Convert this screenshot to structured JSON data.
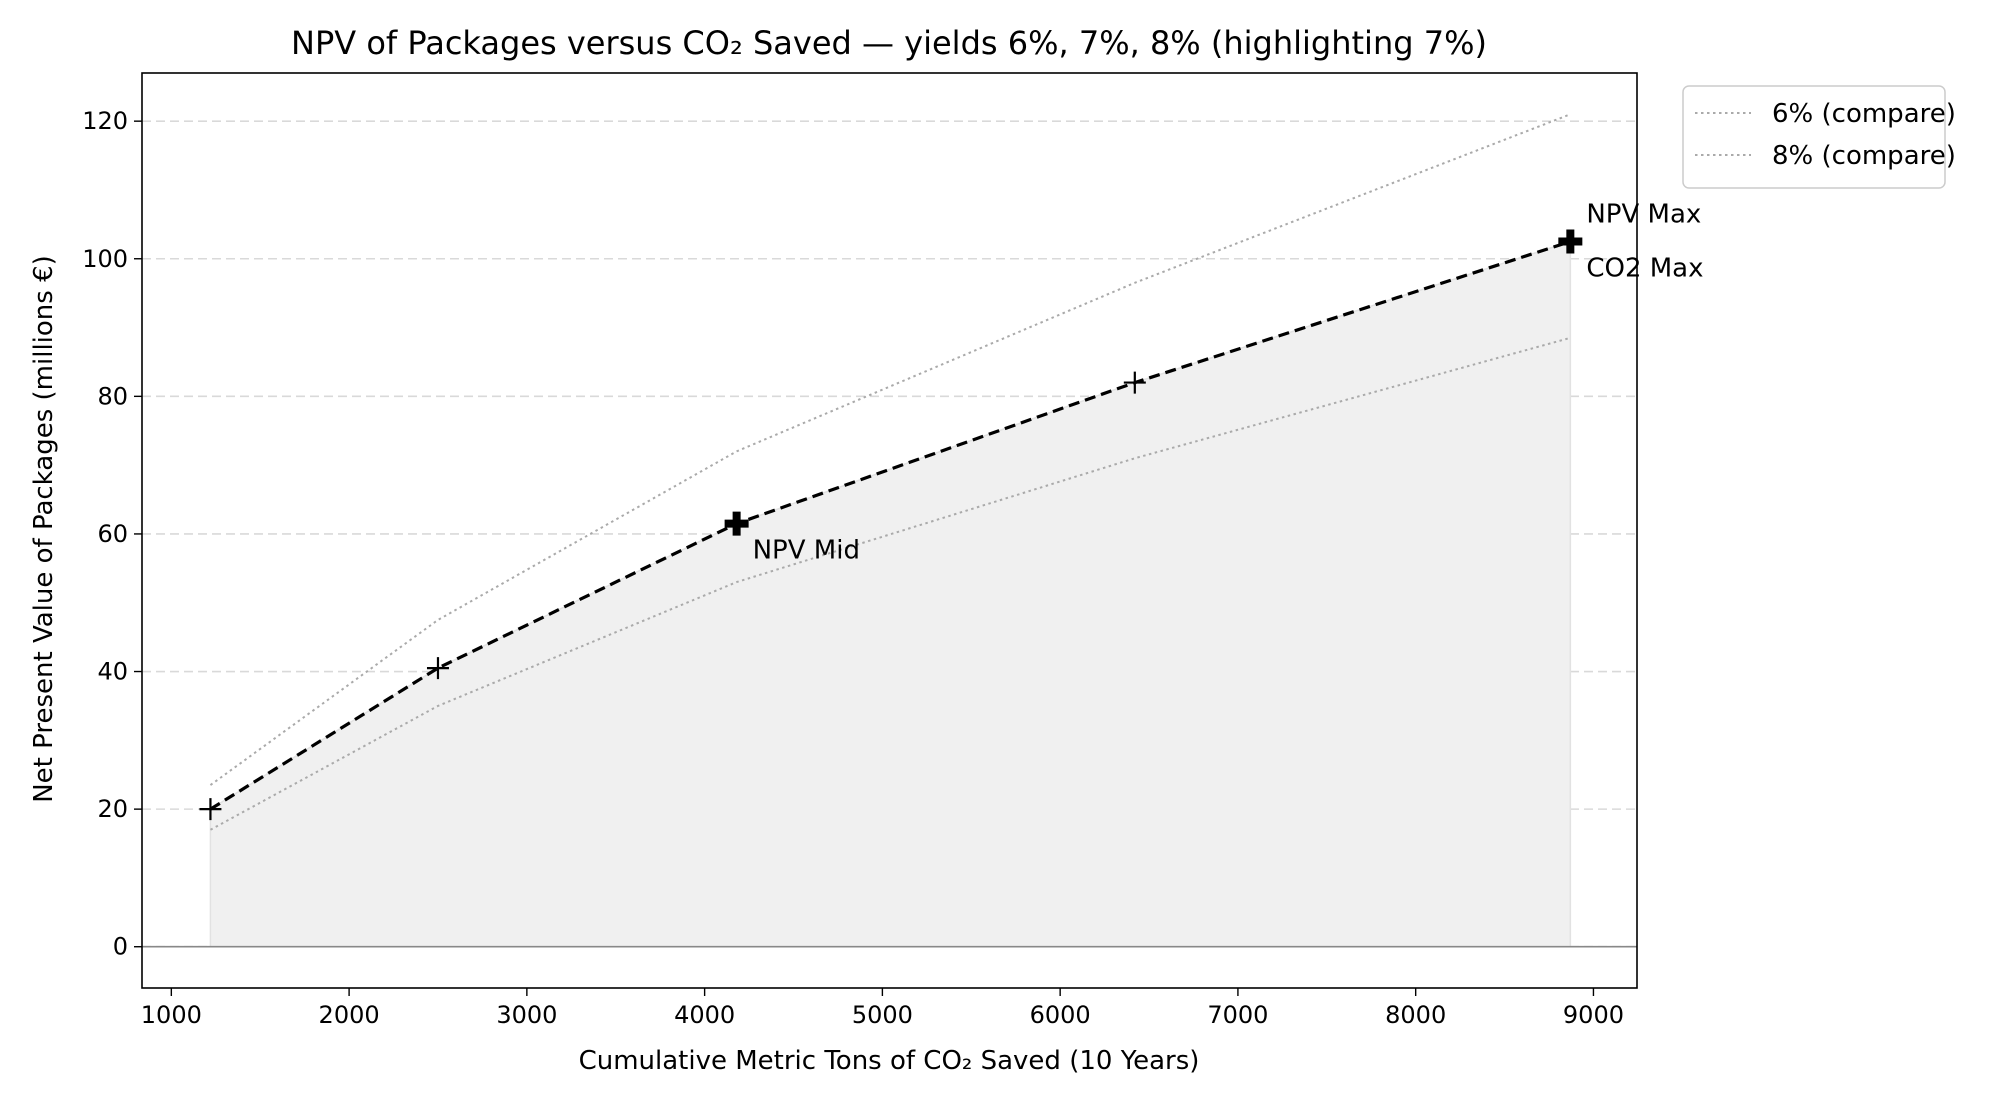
{
  "chart_data": {
    "type": "line",
    "title": "NPV of Packages versus CO₂ Saved — yields 6%, 7%, 8% (highlighting 7%)",
    "xlabel": "Cumulative Metric Tons of CO₂ Saved (10 Years)",
    "ylabel": "Net Present Value of Packages (millions €)",
    "xlim": [
      835,
      9245
    ],
    "ylim": [
      -6,
      127
    ],
    "x_ticks": [
      1000,
      2000,
      3000,
      4000,
      5000,
      6000,
      7000,
      8000,
      9000
    ],
    "y_ticks": [
      0,
      20,
      40,
      60,
      80,
      100,
      120
    ],
    "grid": "y-dashed",
    "legend_position": "outside-top-right",
    "zero_line": true,
    "series": [
      {
        "name": "6% (compare)",
        "style": "dotted",
        "color": "#aaaaaa",
        "x": [
          1220,
          2500,
          4180,
          6420,
          8870
        ],
        "y": [
          23.5,
          47.5,
          72.0,
          96.5,
          121.0
        ]
      },
      {
        "style": "dashed",
        "color": "#000000",
        "highlighted": true,
        "fill_to_zero": true,
        "x": [
          1220,
          2500,
          4180,
          6420,
          8870
        ],
        "y": [
          20.0,
          40.5,
          61.5,
          82.0,
          102.5
        ],
        "markers": [
          "plus",
          "plus",
          "bold-plus",
          "plus",
          "bold-plus"
        ]
      },
      {
        "name": "8% (compare)",
        "style": "dotted",
        "color": "#aaaaaa",
        "x": [
          1220,
          2500,
          4180,
          6420,
          8870
        ],
        "y": [
          17.0,
          35.0,
          53.0,
          71.0,
          88.5
        ]
      }
    ],
    "annotations": [
      {
        "text": "NPV Mid",
        "x": 4180,
        "y": 61.5,
        "placement": "below-right"
      },
      {
        "text": "NPV Max",
        "x": 8870,
        "y": 102.5,
        "placement": "above-right"
      },
      {
        "text": "CO2 Max",
        "x": 8870,
        "y": 102.5,
        "placement": "below-right"
      }
    ]
  }
}
